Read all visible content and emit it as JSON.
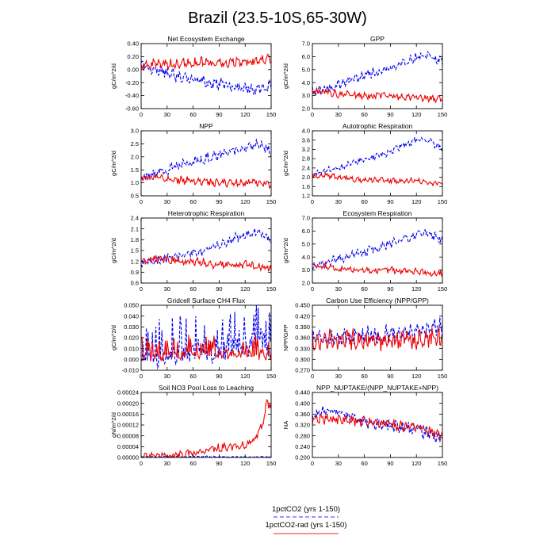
{
  "figure": {
    "title": "Brazil (23.5-10S,65-30W)",
    "legend": [
      {
        "label": "1pctCO2 (yrs 1-150)",
        "color": "#3333ff",
        "style": "dashed"
      },
      {
        "label": "1pctCO2-rad (yrs 1-150)",
        "color": "#ff2222",
        "style": "solid"
      }
    ]
  },
  "colors": {
    "series_1pctCO2": "#0000ee",
    "series_rad": "#ee0000"
  },
  "chart_data": [
    {
      "type": "line",
      "title": "Net Ecosystem Exchange",
      "ylabel": "gC/m^2/d",
      "xlim": [
        0,
        150
      ],
      "xticks": [
        0,
        30,
        60,
        90,
        120,
        150
      ],
      "ylim": [
        -0.6,
        0.4
      ],
      "yticks": [
        -0.6,
        -0.4,
        -0.2,
        0.0,
        0.2,
        0.4
      ],
      "ytick_labels": [
        "-0.60",
        "-0.40",
        "-0.20",
        "0.00",
        "0.20",
        "0.40"
      ],
      "series": [
        {
          "name": "1pctCO2 (yrs 1-150)",
          "x": [
            0,
            15,
            30,
            45,
            60,
            75,
            90,
            105,
            120,
            135,
            150
          ],
          "y": [
            0.05,
            0.02,
            -0.05,
            -0.12,
            -0.15,
            -0.2,
            -0.22,
            -0.25,
            -0.28,
            -0.3,
            -0.25
          ],
          "noise": 0.07,
          "style": "dashed"
        },
        {
          "name": "1pctCO2-rad (yrs 1-150)",
          "x": [
            0,
            15,
            30,
            45,
            60,
            75,
            90,
            105,
            120,
            135,
            150
          ],
          "y": [
            0.05,
            0.08,
            0.08,
            0.1,
            0.1,
            0.12,
            0.1,
            0.12,
            0.13,
            0.15,
            0.15
          ],
          "noise": 0.06,
          "style": "solid"
        }
      ]
    },
    {
      "type": "line",
      "title": "GPP",
      "ylabel": "gC/m^2/d",
      "xlim": [
        0,
        150
      ],
      "xticks": [
        0,
        30,
        60,
        90,
        120,
        150
      ],
      "ylim": [
        2.0,
        7.0
      ],
      "yticks": [
        2.0,
        3.0,
        4.0,
        5.0,
        6.0,
        7.0
      ],
      "ytick_labels": [
        "2.0",
        "3.0",
        "4.0",
        "5.0",
        "6.0",
        "7.0"
      ],
      "series": [
        {
          "name": "1pctCO2 (yrs 1-150)",
          "x": [
            0,
            15,
            30,
            45,
            60,
            75,
            90,
            105,
            120,
            135,
            150
          ],
          "y": [
            3.3,
            3.5,
            3.9,
            4.2,
            4.6,
            4.8,
            5.1,
            5.6,
            5.9,
            6.1,
            5.6
          ],
          "noise": 0.3,
          "style": "dashed"
        },
        {
          "name": "1pctCO2-rad (yrs 1-150)",
          "x": [
            0,
            15,
            30,
            45,
            60,
            75,
            90,
            105,
            120,
            135,
            150
          ],
          "y": [
            3.3,
            3.3,
            3.1,
            3.1,
            3.0,
            3.0,
            3.0,
            2.9,
            2.9,
            2.8,
            2.7
          ],
          "noise": 0.22,
          "style": "solid"
        }
      ]
    },
    {
      "type": "line",
      "title": "NPP",
      "ylabel": "gC/m^2/d",
      "xlim": [
        0,
        150
      ],
      "xticks": [
        0,
        30,
        60,
        90,
        120,
        150
      ],
      "ylim": [
        0.5,
        3.0
      ],
      "yticks": [
        0.5,
        1.0,
        1.5,
        2.0,
        2.5,
        3.0
      ],
      "ytick_labels": [
        "0.5",
        "1.0",
        "1.5",
        "2.0",
        "2.5",
        "3.0"
      ],
      "series": [
        {
          "name": "1pctCO2 (yrs 1-150)",
          "x": [
            0,
            15,
            30,
            45,
            60,
            75,
            90,
            105,
            120,
            135,
            150
          ],
          "y": [
            1.2,
            1.35,
            1.5,
            1.65,
            1.8,
            1.95,
            2.05,
            2.2,
            2.35,
            2.5,
            2.2
          ],
          "noise": 0.16,
          "style": "dashed"
        },
        {
          "name": "1pctCO2-rad (yrs 1-150)",
          "x": [
            0,
            15,
            30,
            45,
            60,
            75,
            90,
            105,
            120,
            135,
            150
          ],
          "y": [
            1.2,
            1.25,
            1.15,
            1.1,
            1.05,
            1.05,
            1.0,
            1.0,
            1.0,
            1.0,
            0.95
          ],
          "noise": 0.12,
          "style": "solid"
        }
      ]
    },
    {
      "type": "line",
      "title": "Autotrophic Respiration",
      "ylabel": "gC/m^2/d",
      "xlim": [
        0,
        150
      ],
      "xticks": [
        0,
        30,
        60,
        90,
        120,
        150
      ],
      "ylim": [
        1.2,
        4.0
      ],
      "yticks": [
        1.2,
        1.6,
        2.0,
        2.4,
        2.8,
        3.2,
        3.6,
        4.0
      ],
      "ytick_labels": [
        "1.2",
        "1.6",
        "2.0",
        "2.4",
        "2.8",
        "3.2",
        "3.6",
        "4.0"
      ],
      "series": [
        {
          "name": "1pctCO2 (yrs 1-150)",
          "x": [
            0,
            15,
            30,
            45,
            60,
            75,
            90,
            105,
            120,
            135,
            150
          ],
          "y": [
            2.1,
            2.25,
            2.4,
            2.6,
            2.75,
            2.9,
            3.1,
            3.4,
            3.6,
            3.6,
            3.2
          ],
          "noise": 0.12,
          "style": "dashed"
        },
        {
          "name": "1pctCO2-rad (yrs 1-150)",
          "x": [
            0,
            15,
            30,
            45,
            60,
            75,
            90,
            105,
            120,
            135,
            150
          ],
          "y": [
            2.1,
            2.1,
            2.0,
            1.95,
            1.9,
            1.9,
            1.85,
            1.85,
            1.85,
            1.8,
            1.7
          ],
          "noise": 0.1,
          "style": "solid"
        }
      ]
    },
    {
      "type": "line",
      "title": "Heterotrophic Respiration",
      "ylabel": "gC/m^2/d",
      "xlim": [
        0,
        150
      ],
      "xticks": [
        0,
        30,
        60,
        90,
        120,
        150
      ],
      "ylim": [
        0.6,
        2.4
      ],
      "yticks": [
        0.6,
        0.9,
        1.2,
        1.5,
        1.8,
        2.1,
        2.4
      ],
      "ytick_labels": [
        "0.6",
        "0.9",
        "1.2",
        "1.5",
        "1.8",
        "2.1",
        "2.4"
      ],
      "series": [
        {
          "name": "1pctCO2 (yrs 1-150)",
          "x": [
            0,
            15,
            30,
            45,
            60,
            75,
            90,
            105,
            120,
            135,
            150
          ],
          "y": [
            1.2,
            1.25,
            1.3,
            1.35,
            1.4,
            1.5,
            1.65,
            1.8,
            1.95,
            2.05,
            1.8
          ],
          "noise": 0.1,
          "style": "dashed"
        },
        {
          "name": "1pctCO2-rad (yrs 1-150)",
          "x": [
            0,
            15,
            30,
            45,
            60,
            75,
            90,
            105,
            120,
            135,
            150
          ],
          "y": [
            1.2,
            1.25,
            1.25,
            1.2,
            1.2,
            1.15,
            1.1,
            1.1,
            1.1,
            1.05,
            1.0
          ],
          "noise": 0.09,
          "style": "solid"
        }
      ]
    },
    {
      "type": "line",
      "title": "Ecosystem Respiration",
      "ylabel": "gC/m^2/d",
      "xlim": [
        0,
        150
      ],
      "xticks": [
        0,
        30,
        60,
        90,
        120,
        150
      ],
      "ylim": [
        2.0,
        7.0
      ],
      "yticks": [
        2.0,
        3.0,
        4.0,
        5.0,
        6.0,
        7.0
      ],
      "ytick_labels": [
        "2.0",
        "3.0",
        "4.0",
        "5.0",
        "6.0",
        "7.0"
      ],
      "series": [
        {
          "name": "1pctCO2 (yrs 1-150)",
          "x": [
            0,
            15,
            30,
            45,
            60,
            75,
            90,
            105,
            120,
            135,
            150
          ],
          "y": [
            3.3,
            3.5,
            3.8,
            4.1,
            4.4,
            4.7,
            5.0,
            5.4,
            5.7,
            5.8,
            5.3
          ],
          "noise": 0.28,
          "style": "dashed"
        },
        {
          "name": "1pctCO2-rad (yrs 1-150)",
          "x": [
            0,
            15,
            30,
            45,
            60,
            75,
            90,
            105,
            120,
            135,
            150
          ],
          "y": [
            3.3,
            3.3,
            3.1,
            3.1,
            3.0,
            3.0,
            3.0,
            2.9,
            2.9,
            2.8,
            2.7
          ],
          "noise": 0.2,
          "style": "solid"
        }
      ]
    },
    {
      "type": "line",
      "title": "Gridcell Surface CH4 Flux",
      "ylabel": "gC/m^2/d",
      "xlim": [
        0,
        150
      ],
      "xticks": [
        0,
        30,
        60,
        90,
        120,
        150
      ],
      "ylim": [
        -0.01,
        0.05
      ],
      "yticks": [
        -0.01,
        0.0,
        0.01,
        0.02,
        0.03,
        0.04,
        0.05
      ],
      "ytick_labels": [
        "-0.010",
        "0.000",
        "0.010",
        "0.020",
        "0.030",
        "0.040",
        "0.050"
      ],
      "series": [
        {
          "name": "1pctCO2 (yrs 1-150)",
          "x": [
            0,
            15,
            30,
            45,
            60,
            75,
            90,
            105,
            120,
            135,
            150
          ],
          "y": [
            0.004,
            0.005,
            0.005,
            0.006,
            0.007,
            0.008,
            0.01,
            0.014,
            0.016,
            0.014,
            0.008
          ],
          "noise": 0.009,
          "style": "dashed",
          "spiky": true
        },
        {
          "name": "1pctCO2-rad (yrs 1-150)",
          "x": [
            0,
            15,
            30,
            45,
            60,
            75,
            90,
            105,
            120,
            135,
            150
          ],
          "y": [
            0.004,
            0.004,
            0.004,
            0.004,
            0.005,
            0.005,
            0.005,
            0.005,
            0.005,
            0.005,
            0.004
          ],
          "noise": 0.004,
          "style": "solid",
          "spiky": true
        }
      ]
    },
    {
      "type": "line",
      "title": "Carbon Use Efficiency (NPP/GPP)",
      "ylabel": "NPP/GPP",
      "xlim": [
        0,
        150
      ],
      "xticks": [
        0,
        30,
        60,
        90,
        120,
        150
      ],
      "ylim": [
        0.27,
        0.45
      ],
      "yticks": [
        0.27,
        0.3,
        0.33,
        0.36,
        0.39,
        0.42,
        0.45
      ],
      "ytick_labels": [
        "0.270",
        "0.300",
        "0.330",
        "0.360",
        "0.390",
        "0.420",
        "0.450"
      ],
      "series": [
        {
          "name": "1pctCO2 (yrs 1-150)",
          "x": [
            0,
            15,
            30,
            45,
            60,
            75,
            90,
            105,
            120,
            135,
            150
          ],
          "y": [
            0.355,
            0.36,
            0.36,
            0.362,
            0.365,
            0.368,
            0.37,
            0.375,
            0.378,
            0.38,
            0.39
          ],
          "noise": 0.02,
          "style": "dashed"
        },
        {
          "name": "1pctCO2-rad (yrs 1-150)",
          "x": [
            0,
            15,
            30,
            45,
            60,
            75,
            90,
            105,
            120,
            135,
            150
          ],
          "y": [
            0.355,
            0.355,
            0.352,
            0.355,
            0.355,
            0.355,
            0.355,
            0.355,
            0.355,
            0.355,
            0.36
          ],
          "noise": 0.022,
          "style": "solid"
        }
      ]
    },
    {
      "type": "line",
      "title": "Soil NO3 Pool Loss to Leaching",
      "ylabel": "gN/m^2/d",
      "xlim": [
        0,
        150
      ],
      "xticks": [
        0,
        30,
        60,
        90,
        120,
        150
      ],
      "ylim": [
        0,
        0.00024
      ],
      "yticks": [
        0,
        4e-05,
        8e-05,
        0.00012,
        0.00016,
        0.0002,
        0.00024
      ],
      "ytick_labels": [
        "0.00000",
        "0.00004",
        "0.00008",
        "0.00012",
        "0.00016",
        "0.00020",
        "0.00024"
      ],
      "series": [
        {
          "name": "1pctCO2 (yrs 1-150)",
          "x": [
            0,
            15,
            30,
            45,
            60,
            75,
            90,
            105,
            120,
            135,
            150
          ],
          "y": [
            3e-06,
            3e-06,
            3e-06,
            3e-06,
            3e-06,
            3e-06,
            2e-06,
            2e-06,
            2e-06,
            2e-06,
            2e-06
          ],
          "noise": 2e-06,
          "style": "dashed"
        },
        {
          "name": "1pctCO2-rad (yrs 1-150)",
          "x": [
            0,
            15,
            30,
            45,
            60,
            75,
            90,
            105,
            120,
            130,
            140,
            145,
            150
          ],
          "y": [
            3e-06,
            3e-06,
            6e-06,
            1.2e-05,
            1.8e-05,
            2.5e-05,
            3.5e-05,
            4.2e-05,
            4.5e-05,
            6e-05,
            0.00012,
            0.0002,
            0.00019
          ],
          "noise": 1.2e-05,
          "style": "solid"
        }
      ]
    },
    {
      "type": "line",
      "title": "NPP_NUPTAKE/(NPP_NUPTAKE+NPP)",
      "ylabel": "NA",
      "xlim": [
        0,
        150
      ],
      "xticks": [
        0,
        30,
        60,
        90,
        120,
        150
      ],
      "ylim": [
        0.2,
        0.44
      ],
      "yticks": [
        0.2,
        0.24,
        0.28,
        0.32,
        0.36,
        0.4,
        0.44
      ],
      "ytick_labels": [
        "0.200",
        "0.240",
        "0.280",
        "0.320",
        "0.360",
        "0.400",
        "0.440"
      ],
      "series": [
        {
          "name": "1pctCO2 (yrs 1-150)",
          "x": [
            0,
            15,
            30,
            45,
            60,
            75,
            90,
            105,
            120,
            135,
            150
          ],
          "y": [
            0.35,
            0.37,
            0.36,
            0.345,
            0.33,
            0.325,
            0.32,
            0.31,
            0.3,
            0.29,
            0.27
          ],
          "noise": 0.018,
          "style": "dashed"
        },
        {
          "name": "1pctCO2-rad (yrs 1-150)",
          "x": [
            0,
            15,
            30,
            45,
            60,
            75,
            90,
            105,
            120,
            135,
            150
          ],
          "y": [
            0.34,
            0.345,
            0.34,
            0.335,
            0.33,
            0.325,
            0.32,
            0.315,
            0.31,
            0.3,
            0.28
          ],
          "noise": 0.015,
          "style": "solid"
        }
      ]
    }
  ]
}
